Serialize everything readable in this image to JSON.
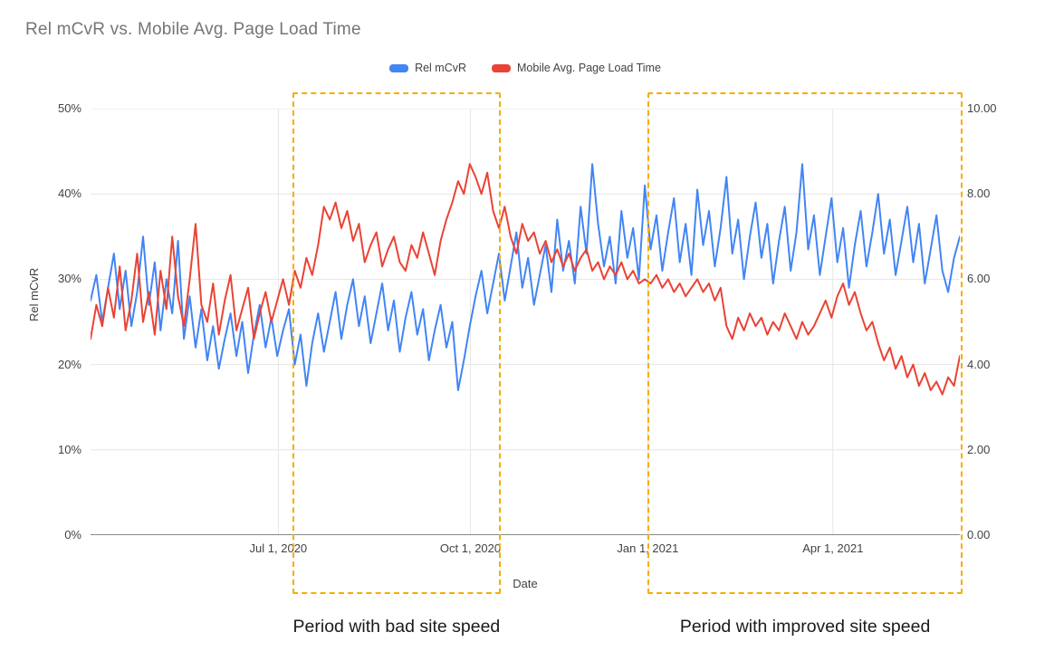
{
  "title": "Rel mCvR vs. Mobile Avg. Page Load Time",
  "legend": {
    "items": [
      {
        "label": "Rel mCvR",
        "color": "#4285F4"
      },
      {
        "label": "Mobile Avg. Page Load Time",
        "color": "#EA4335"
      }
    ]
  },
  "annotations": {
    "region_color": "#F9AB00"
  },
  "chart_data": {
    "type": "line",
    "title": "Rel mCvR vs. Mobile Avg. Page Load Time",
    "xlabel": "Date",
    "ylabel_left": "Rel mCvR",
    "grid": true,
    "legend_position": "top-center",
    "x_ticks": [
      {
        "label": "Jul 1, 2020",
        "pos": 0.216
      },
      {
        "label": "Oct 1, 2020",
        "pos": 0.437
      },
      {
        "label": "Jan 1, 2021",
        "pos": 0.641
      },
      {
        "label": "Apr 1, 2021",
        "pos": 0.854
      }
    ],
    "y_left": {
      "tick_labels": [
        "0%",
        "10%",
        "20%",
        "30%",
        "40%",
        "50%"
      ],
      "tick_values": [
        0,
        10,
        20,
        30,
        40,
        50
      ],
      "range": [
        0,
        50
      ]
    },
    "y_right": {
      "tick_labels": [
        "0.00",
        "2.00",
        "4.00",
        "6.00",
        "8.00",
        "10.00"
      ],
      "tick_values": [
        0,
        2,
        4,
        6,
        8,
        10
      ],
      "range": [
        0,
        10
      ]
    },
    "series": [
      {
        "name": "Rel mCvR",
        "axis": "left",
        "unit": "%",
        "color": "#4285F4",
        "values": [
          27.5,
          30.5,
          25.0,
          29.0,
          33.0,
          26.5,
          31.0,
          24.5,
          28.5,
          35.0,
          27.0,
          32.0,
          24.0,
          30.0,
          26.0,
          34.5,
          23.0,
          28.0,
          22.0,
          26.5,
          20.5,
          24.5,
          19.5,
          23.0,
          26.0,
          21.0,
          25.0,
          19.0,
          23.5,
          27.0,
          22.0,
          25.5,
          21.0,
          24.0,
          26.5,
          20.0,
          23.5,
          17.5,
          22.5,
          26.0,
          21.5,
          25.0,
          28.5,
          23.0,
          27.0,
          30.0,
          24.5,
          28.0,
          22.5,
          26.0,
          29.5,
          24.0,
          27.5,
          21.5,
          25.5,
          28.5,
          23.5,
          26.5,
          20.5,
          24.0,
          27.0,
          22.0,
          25.0,
          17.0,
          20.5,
          24.5,
          28.0,
          31.0,
          26.0,
          29.5,
          33.0,
          27.5,
          31.5,
          35.5,
          29.0,
          32.5,
          27.0,
          30.5,
          34.0,
          28.5,
          37.0,
          31.0,
          34.5,
          29.5,
          38.5,
          33.0,
          43.5,
          36.5,
          31.5,
          35.0,
          29.5,
          38.0,
          32.5,
          36.0,
          30.0,
          41.0,
          33.5,
          37.5,
          31.0,
          35.5,
          39.5,
          32.0,
          36.5,
          30.5,
          40.5,
          34.0,
          38.0,
          31.5,
          36.0,
          42.0,
          33.0,
          37.0,
          30.0,
          35.0,
          39.0,
          32.5,
          36.5,
          29.5,
          34.5,
          38.5,
          31.0,
          35.5,
          43.5,
          33.5,
          37.5,
          30.5,
          35.0,
          39.5,
          32.0,
          36.0,
          29.0,
          34.0,
          38.0,
          31.5,
          35.5,
          40.0,
          33.0,
          37.0,
          30.5,
          34.5,
          38.5,
          32.0,
          36.5,
          29.5,
          33.5,
          37.5,
          31.0,
          28.5,
          32.5,
          35.0
        ]
      },
      {
        "name": "Mobile Avg. Page Load Time",
        "axis": "right",
        "unit": "s",
        "color": "#EA4335",
        "values": [
          4.6,
          5.4,
          4.9,
          5.8,
          5.1,
          6.3,
          4.8,
          5.5,
          6.6,
          5.0,
          5.7,
          4.7,
          6.2,
          5.3,
          7.0,
          5.6,
          4.9,
          6.0,
          7.3,
          5.4,
          5.0,
          5.9,
          4.7,
          5.5,
          6.1,
          4.8,
          5.3,
          5.8,
          4.6,
          5.2,
          5.7,
          5.0,
          5.5,
          6.0,
          5.4,
          6.2,
          5.8,
          6.5,
          6.1,
          6.8,
          7.7,
          7.4,
          7.8,
          7.2,
          7.6,
          6.9,
          7.3,
          6.4,
          6.8,
          7.1,
          6.3,
          6.7,
          7.0,
          6.4,
          6.2,
          6.8,
          6.5,
          7.1,
          6.6,
          6.1,
          6.9,
          7.4,
          7.8,
          8.3,
          8.0,
          8.7,
          8.4,
          8.0,
          8.5,
          7.6,
          7.2,
          7.7,
          7.0,
          6.6,
          7.3,
          6.9,
          7.1,
          6.6,
          6.9,
          6.4,
          6.7,
          6.3,
          6.6,
          6.2,
          6.5,
          6.7,
          6.2,
          6.4,
          6.0,
          6.3,
          6.1,
          6.4,
          6.0,
          6.2,
          5.9,
          6.0,
          5.9,
          6.1,
          5.8,
          6.0,
          5.7,
          5.9,
          5.6,
          5.8,
          6.0,
          5.7,
          5.9,
          5.5,
          5.8,
          4.9,
          4.6,
          5.1,
          4.8,
          5.2,
          4.9,
          5.1,
          4.7,
          5.0,
          4.8,
          5.2,
          4.9,
          4.6,
          5.0,
          4.7,
          4.9,
          5.2,
          5.5,
          5.1,
          5.6,
          5.9,
          5.4,
          5.7,
          5.2,
          4.8,
          5.0,
          4.5,
          4.1,
          4.4,
          3.9,
          4.2,
          3.7,
          4.0,
          3.5,
          3.8,
          3.4,
          3.6,
          3.3,
          3.7,
          3.5,
          4.2
        ]
      }
    ],
    "highlight_regions": [
      {
        "label": "Period with bad site speed",
        "x_start": 0.232,
        "x_end": 0.472
      },
      {
        "label": "Period with improved site speed",
        "x_start": 0.641,
        "x_end": 1.003
      }
    ]
  }
}
